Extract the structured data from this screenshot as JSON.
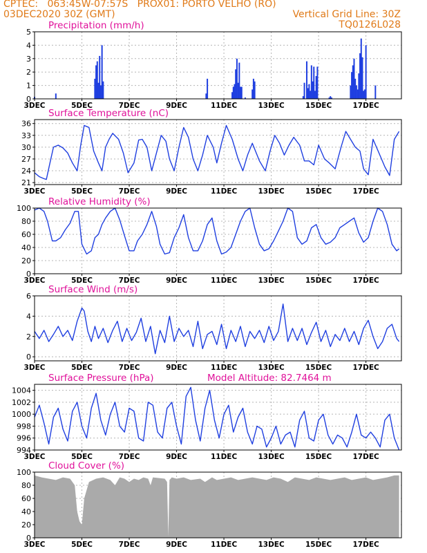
{
  "header": {
    "line1_left": "CPTEC:   063:45W-07:57S   PROX01: PORTO VELHO (RO)",
    "line2_left": "03DEC2020 30Z (GMT)",
    "line2_right": "Vertical Grid Line: 30Z",
    "line3_right": "TQ0126L028"
  },
  "colors": {
    "header": "#e07a18",
    "title": "#e0119a",
    "series": "#1f3fe0",
    "cloud": "#aaaaaa",
    "grid": "#b4b4b4"
  },
  "x_axis": {
    "day_range": [
      3,
      18.5
    ],
    "ticks": [
      {
        "day": 3,
        "label": "3DEC"
      },
      {
        "day": 5,
        "label": "5DEC"
      },
      {
        "day": 7,
        "label": "7DEC"
      },
      {
        "day": 9,
        "label": "9DEC"
      },
      {
        "day": 11,
        "label": "11DEC"
      },
      {
        "day": 13,
        "label": "13DEC"
      },
      {
        "day": 15,
        "label": "15DEC"
      },
      {
        "day": 17,
        "label": "17DEC"
      }
    ]
  },
  "chart_data": [
    {
      "type": "bar",
      "title": "Precipitation (mm/h)",
      "ylim": [
        0,
        5
      ],
      "yticks": [
        0,
        1,
        2,
        3,
        4,
        5
      ],
      "x_days": [
        3.0,
        3.9,
        5.55,
        5.6,
        5.65,
        5.7,
        5.75,
        5.8,
        5.85,
        5.9,
        10.25,
        10.3,
        11.35,
        11.4,
        11.45,
        11.5,
        11.55,
        11.6,
        11.65,
        11.7,
        11.75,
        11.9,
        12.2,
        12.25,
        12.3,
        14.35,
        14.4,
        14.5,
        14.55,
        14.6,
        14.65,
        14.7,
        14.75,
        14.8,
        14.85,
        14.9,
        14.95,
        15.45,
        15.5,
        15.55,
        16.35,
        16.4,
        16.45,
        16.5,
        16.55,
        16.6,
        16.65,
        16.7,
        16.75,
        16.8,
        16.85,
        16.9,
        16.95,
        17.0,
        17.4
      ],
      "values": [
        0.15,
        0.4,
        1.5,
        2.5,
        2.8,
        1.2,
        3.2,
        1.0,
        4.0,
        1.3,
        0.4,
        1.5,
        0.5,
        0.9,
        1.1,
        2.2,
        3.0,
        1.2,
        2.7,
        0.9,
        0.9,
        0.1,
        0.7,
        1.5,
        1.3,
        0.2,
        1.2,
        2.8,
        0.8,
        1.1,
        0.6,
        2.5,
        1.3,
        2.4,
        0.6,
        1.7,
        2.4,
        0.1,
        0.2,
        0.1,
        1.0,
        2.0,
        2.5,
        3.0,
        1.5,
        1.0,
        0.7,
        1.9,
        3.4,
        4.5,
        3.1,
        0.6,
        0.7,
        4.0,
        1.0
      ],
      "series_name": ""
    },
    {
      "type": "line",
      "title": "Surface Temperature (nC)",
      "ylim": [
        20.5,
        37
      ],
      "yticks": [
        21,
        24,
        27,
        30,
        33,
        36
      ],
      "x_days": [
        3.0,
        3.2,
        3.4,
        3.5,
        3.65,
        3.8,
        4.0,
        4.2,
        4.4,
        4.6,
        4.8,
        4.95,
        5.1,
        5.3,
        5.5,
        5.7,
        5.85,
        6.0,
        6.15,
        6.3,
        6.55,
        6.75,
        6.95,
        7.2,
        7.4,
        7.55,
        7.75,
        7.95,
        8.15,
        8.35,
        8.55,
        8.7,
        8.9,
        9.1,
        9.3,
        9.5,
        9.7,
        9.9,
        10.1,
        10.3,
        10.55,
        10.7,
        10.9,
        11.1,
        11.35,
        11.6,
        11.8,
        12.0,
        12.2,
        12.5,
        12.75,
        12.95,
        13.15,
        13.35,
        13.55,
        13.75,
        13.95,
        14.2,
        14.4,
        14.6,
        14.8,
        15.0,
        15.25,
        15.45,
        15.7,
        15.95,
        16.15,
        16.35,
        16.55,
        16.75,
        16.9,
        17.1,
        17.3,
        17.55,
        17.8,
        18.0,
        18.2,
        18.4
      ],
      "values": [
        23.5,
        22.5,
        22.0,
        21.8,
        26.0,
        30.0,
        30.5,
        29.8,
        28.5,
        26.0,
        24.0,
        30.5,
        35.5,
        35.0,
        29.0,
        26.0,
        24.0,
        30.0,
        32.0,
        33.5,
        32.0,
        28.5,
        23.5,
        26.0,
        31.8,
        32.0,
        30.0,
        24.0,
        28.5,
        33.0,
        31.5,
        27.0,
        24.0,
        30.0,
        35.0,
        32.5,
        27.0,
        24.0,
        28.0,
        33.0,
        30.0,
        26.0,
        31.0,
        35.5,
        32.0,
        27.0,
        24.0,
        28.0,
        31.0,
        26.5,
        24.0,
        29.0,
        33.0,
        31.0,
        28.0,
        30.5,
        32.5,
        30.5,
        26.5,
        26.5,
        25.5,
        30.5,
        27.0,
        26.0,
        24.5,
        30.0,
        34.0,
        32.0,
        30.0,
        29.0,
        24.5,
        23.0,
        32.0,
        28.5,
        25.0,
        22.8,
        32.0,
        34.0
      ],
      "series_name": ""
    },
    {
      "type": "line",
      "title": "Relative Humidity (%)",
      "ylim": [
        0,
        100
      ],
      "yticks": [
        0,
        20,
        40,
        60,
        80,
        100
      ],
      "x_days": [
        3.0,
        3.2,
        3.4,
        3.55,
        3.75,
        3.9,
        4.1,
        4.3,
        4.5,
        4.7,
        4.85,
        5.0,
        5.2,
        5.4,
        5.55,
        5.7,
        5.85,
        6.0,
        6.2,
        6.4,
        6.6,
        6.8,
        7.0,
        7.2,
        7.35,
        7.55,
        7.75,
        7.95,
        8.15,
        8.3,
        8.5,
        8.7,
        8.9,
        9.1,
        9.3,
        9.5,
        9.7,
        9.9,
        10.1,
        10.3,
        10.5,
        10.7,
        10.9,
        11.1,
        11.3,
        11.5,
        11.7,
        11.9,
        12.1,
        12.3,
        12.5,
        12.7,
        12.9,
        13.1,
        13.3,
        13.5,
        13.7,
        13.9,
        14.1,
        14.3,
        14.5,
        14.7,
        14.9,
        15.1,
        15.3,
        15.5,
        15.7,
        15.9,
        16.1,
        16.3,
        16.5,
        16.7,
        16.9,
        17.1,
        17.3,
        17.5,
        17.7,
        17.9,
        18.1,
        18.3,
        18.4
      ],
      "values": [
        97,
        100,
        95,
        80,
        50,
        50,
        55,
        67,
        77,
        95,
        95,
        45,
        30,
        35,
        55,
        60,
        75,
        85,
        95,
        100,
        82,
        58,
        35,
        35,
        50,
        60,
        75,
        95,
        72,
        45,
        30,
        32,
        55,
        70,
        90,
        55,
        35,
        35,
        50,
        75,
        85,
        50,
        30,
        33,
        40,
        60,
        80,
        95,
        100,
        70,
        45,
        35,
        38,
        50,
        65,
        80,
        100,
        95,
        55,
        45,
        50,
        70,
        75,
        55,
        45,
        48,
        55,
        70,
        75,
        80,
        85,
        62,
        48,
        55,
        80,
        100,
        95,
        75,
        45,
        35,
        38
      ],
      "series_name": ""
    },
    {
      "type": "line",
      "title": "Surface Wind (m/s)",
      "ylim": [
        -0.4,
        6
      ],
      "yticks": [
        0,
        2,
        4,
        6
      ],
      "x_days": [
        3.0,
        3.2,
        3.4,
        3.6,
        3.8,
        4.0,
        4.2,
        4.4,
        4.6,
        4.8,
        5.0,
        5.1,
        5.25,
        5.4,
        5.55,
        5.7,
        5.9,
        6.1,
        6.3,
        6.5,
        6.7,
        6.9,
        7.1,
        7.3,
        7.5,
        7.7,
        7.9,
        8.1,
        8.3,
        8.5,
        8.7,
        8.9,
        9.1,
        9.3,
        9.5,
        9.7,
        9.9,
        10.1,
        10.3,
        10.5,
        10.7,
        10.9,
        11.1,
        11.3,
        11.5,
        11.7,
        11.9,
        12.1,
        12.3,
        12.5,
        12.7,
        12.9,
        13.1,
        13.3,
        13.5,
        13.7,
        13.9,
        14.1,
        14.3,
        14.5,
        14.7,
        14.9,
        15.1,
        15.3,
        15.5,
        15.7,
        15.9,
        16.1,
        16.3,
        16.5,
        16.7,
        16.9,
        17.1,
        17.3,
        17.5,
        17.7,
        17.9,
        18.1,
        18.3,
        18.4
      ],
      "values": [
        2.5,
        1.8,
        2.6,
        1.5,
        2.2,
        3.0,
        2.0,
        2.6,
        1.6,
        3.5,
        4.8,
        4.5,
        2.5,
        1.5,
        3.0,
        1.8,
        2.8,
        1.4,
        2.6,
        3.5,
        1.5,
        2.8,
        1.6,
        2.4,
        3.8,
        1.5,
        3.0,
        0.3,
        2.6,
        1.4,
        4.0,
        1.5,
        2.8,
        2.0,
        2.6,
        1.0,
        3.5,
        0.8,
        2.2,
        2.5,
        1.2,
        3.2,
        0.8,
        2.6,
        1.5,
        3.0,
        1.0,
        2.5,
        1.8,
        2.6,
        1.4,
        3.0,
        1.6,
        2.5,
        5.2,
        1.5,
        2.8,
        1.6,
        2.8,
        1.2,
        2.4,
        3.4,
        1.5,
        2.6,
        1.0,
        2.2,
        1.6,
        2.8,
        1.5,
        2.5,
        1.2,
        2.8,
        3.6,
        2.0,
        0.8,
        1.5,
        2.8,
        3.2,
        1.8,
        1.5
      ],
      "series_name": ""
    },
    {
      "type": "line",
      "title": "Surface Pressure (hPa)",
      "annotation": "Model Altitude: 82.7464 m",
      "ylim": [
        994,
        1005
      ],
      "yticks": [
        994,
        996,
        998,
        1000,
        1002,
        1004
      ],
      "x_days": [
        3.0,
        3.2,
        3.4,
        3.6,
        3.8,
        4.0,
        4.2,
        4.4,
        4.6,
        4.8,
        5.0,
        5.2,
        5.4,
        5.6,
        5.8,
        6.0,
        6.2,
        6.4,
        6.6,
        6.8,
        7.0,
        7.2,
        7.4,
        7.6,
        7.8,
        8.0,
        8.2,
        8.4,
        8.6,
        8.8,
        9.0,
        9.2,
        9.4,
        9.6,
        9.8,
        10.0,
        10.2,
        10.4,
        10.6,
        10.8,
        11.0,
        11.2,
        11.4,
        11.6,
        11.8,
        12.0,
        12.2,
        12.4,
        12.6,
        12.8,
        13.0,
        13.2,
        13.4,
        13.6,
        13.8,
        14.0,
        14.2,
        14.4,
        14.6,
        14.8,
        15.0,
        15.2,
        15.4,
        15.6,
        15.8,
        16.0,
        16.2,
        16.4,
        16.6,
        16.8,
        17.0,
        17.2,
        17.4,
        17.6,
        17.8,
        18.0,
        18.2,
        18.4
      ],
      "values": [
        999.5,
        1001.5,
        998.5,
        995.0,
        999.5,
        1001.0,
        997.5,
        995.5,
        1000.5,
        1002.0,
        998.0,
        996.0,
        1001.0,
        1003.5,
        999.0,
        996.5,
        1000.0,
        1002.0,
        998.0,
        997.0,
        1001.0,
        1000.5,
        996.0,
        995.5,
        1002.0,
        1001.5,
        997.0,
        996.0,
        1001.0,
        1002.0,
        998.0,
        995.0,
        1003.0,
        1004.5,
        999.0,
        995.5,
        1001.0,
        1004.0,
        999.0,
        996.0,
        1000.0,
        1001.5,
        997.0,
        999.5,
        1001.0,
        997.0,
        995.0,
        998.0,
        997.5,
        994.5,
        996.0,
        998.0,
        995.0,
        996.5,
        997.0,
        994.5,
        999.0,
        1000.5,
        996.0,
        995.5,
        999.0,
        1000.0,
        996.5,
        995.0,
        996.5,
        996.0,
        994.5,
        997.0,
        1000.0,
        996.5,
        996.0,
        997.0,
        996.0,
        994.5,
        999.0,
        1000.0,
        996.0,
        994.0
      ],
      "series_name": ""
    },
    {
      "type": "area",
      "title": "Cloud Cover (%)",
      "ylim": [
        0,
        100
      ],
      "yticks": [
        0,
        20,
        40,
        60,
        80,
        100
      ],
      "x_days": [
        3.0,
        3.3,
        3.6,
        3.9,
        4.2,
        4.5,
        4.7,
        4.8,
        4.9,
        5.0,
        5.1,
        5.3,
        5.6,
        5.9,
        6.2,
        6.4,
        6.6,
        6.8,
        7.0,
        7.2,
        7.4,
        7.6,
        7.8,
        7.9,
        8.0,
        8.5,
        8.6,
        8.65,
        8.7,
        8.8,
        9.0,
        9.3,
        9.6,
        10.0,
        10.2,
        10.5,
        10.7,
        11.0,
        11.3,
        11.6,
        11.9,
        12.2,
        12.5,
        12.8,
        13.1,
        13.4,
        13.7,
        14.0,
        14.3,
        14.6,
        14.9,
        15.2,
        15.5,
        15.8,
        16.1,
        16.4,
        16.7,
        17.0,
        17.3,
        17.6,
        17.9,
        18.2,
        18.4
      ],
      "values": [
        95,
        92,
        90,
        88,
        92,
        90,
        80,
        40,
        25,
        20,
        60,
        85,
        90,
        92,
        88,
        80,
        92,
        90,
        85,
        90,
        88,
        92,
        90,
        80,
        92,
        90,
        85,
        2,
        88,
        92,
        90,
        92,
        88,
        90,
        85,
        92,
        88,
        90,
        92,
        88,
        90,
        92,
        90,
        88,
        92,
        90,
        85,
        92,
        90,
        88,
        92,
        90,
        88,
        90,
        92,
        88,
        90,
        92,
        88,
        90,
        92,
        95,
        95
      ],
      "series_name": ""
    }
  ]
}
